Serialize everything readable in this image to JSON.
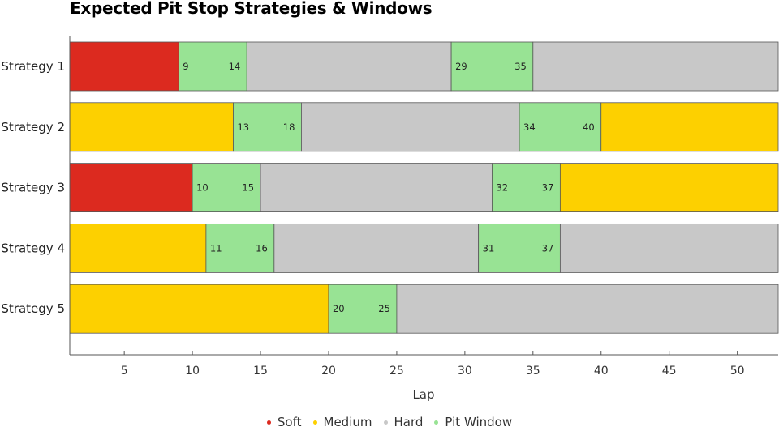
{
  "chart_data": {
    "type": "bar",
    "title": "Expected Pit Stop Strategies & Windows",
    "xlabel": "Lap",
    "ylabel": "",
    "xlim": [
      1,
      53
    ],
    "xticks": [
      5,
      10,
      15,
      20,
      25,
      30,
      35,
      40,
      45,
      50
    ],
    "grid": false,
    "legend_position": "bottom",
    "compound_colors": {
      "Soft": "#dc2a1f",
      "Medium": "#fdd000",
      "Hard": "#c8c8c8",
      "Pit Window": "#98e394"
    },
    "legend": [
      {
        "name": "Soft",
        "color": "#dc2a1f"
      },
      {
        "name": "Medium",
        "color": "#fdd000"
      },
      {
        "name": "Hard",
        "color": "#c8c8c8"
      },
      {
        "name": "Pit Window",
        "color": "#98e394"
      }
    ],
    "strategies": [
      {
        "name": "Strategy 1",
        "segments": [
          {
            "compound": "Soft",
            "start": 1,
            "end": 9
          },
          {
            "compound": "Pit Window",
            "start": 9,
            "end": 14
          },
          {
            "compound": "Hard",
            "start": 14,
            "end": 29
          },
          {
            "compound": "Pit Window",
            "start": 29,
            "end": 35
          },
          {
            "compound": "Hard",
            "start": 35,
            "end": 53
          }
        ]
      },
      {
        "name": "Strategy 2",
        "segments": [
          {
            "compound": "Medium",
            "start": 1,
            "end": 13
          },
          {
            "compound": "Pit Window",
            "start": 13,
            "end": 18
          },
          {
            "compound": "Hard",
            "start": 18,
            "end": 34
          },
          {
            "compound": "Pit Window",
            "start": 34,
            "end": 40
          },
          {
            "compound": "Medium",
            "start": 40,
            "end": 53
          }
        ]
      },
      {
        "name": "Strategy 3",
        "segments": [
          {
            "compound": "Soft",
            "start": 1,
            "end": 10
          },
          {
            "compound": "Pit Window",
            "start": 10,
            "end": 15
          },
          {
            "compound": "Hard",
            "start": 15,
            "end": 32
          },
          {
            "compound": "Pit Window",
            "start": 32,
            "end": 37
          },
          {
            "compound": "Medium",
            "start": 37,
            "end": 53
          }
        ]
      },
      {
        "name": "Strategy 4",
        "segments": [
          {
            "compound": "Medium",
            "start": 1,
            "end": 11
          },
          {
            "compound": "Pit Window",
            "start": 11,
            "end": 16
          },
          {
            "compound": "Hard",
            "start": 16,
            "end": 31
          },
          {
            "compound": "Pit Window",
            "start": 31,
            "end": 37
          },
          {
            "compound": "Hard",
            "start": 37,
            "end": 53
          }
        ]
      },
      {
        "name": "Strategy 5",
        "segments": [
          {
            "compound": "Medium",
            "start": 1,
            "end": 20
          },
          {
            "compound": "Pit Window",
            "start": 20,
            "end": 25
          },
          {
            "compound": "Hard",
            "start": 25,
            "end": 53
          }
        ]
      }
    ]
  }
}
